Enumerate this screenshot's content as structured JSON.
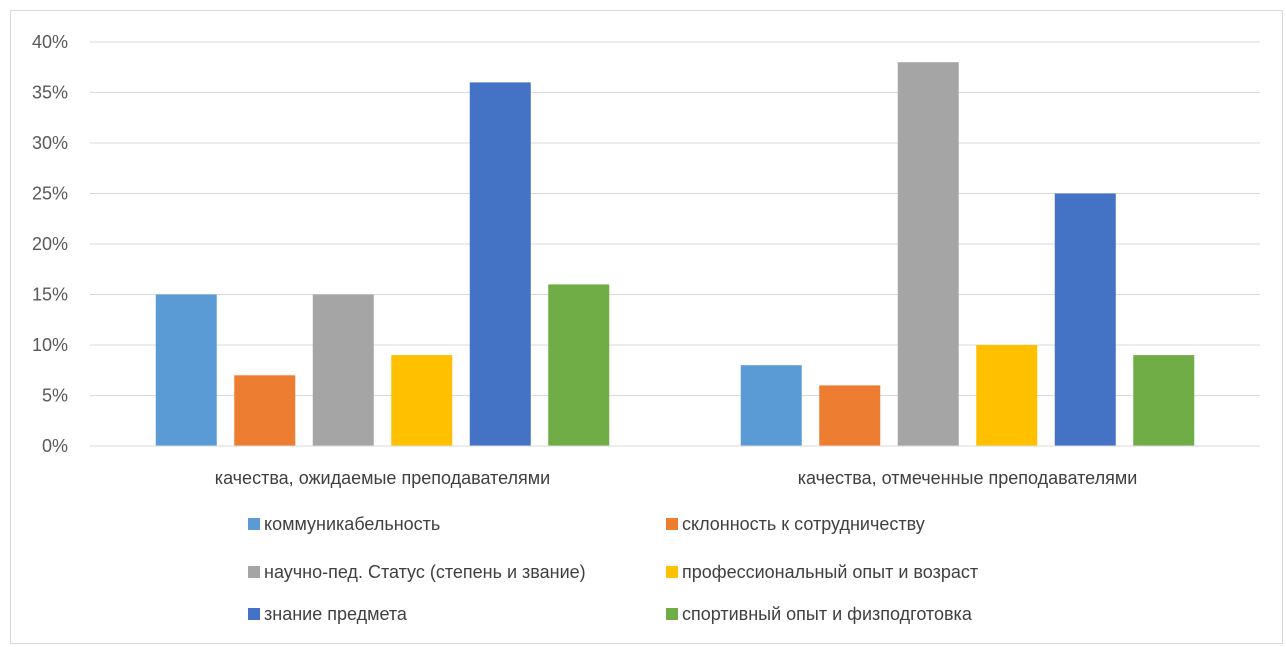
{
  "chart_data": {
    "type": "bar",
    "categories": [
      "качества, ожидаемые преподавателями",
      "качества, отмеченные преподавателями"
    ],
    "series": [
      {
        "name": "коммуникабельность",
        "values": [
          15,
          8
        ],
        "color": "#5b9bd5"
      },
      {
        "name": "склонность к сотрудничеству",
        "values": [
          7,
          6
        ],
        "color": "#ed7d31"
      },
      {
        "name": "научно-пед. Статус (степень и звание)",
        "values": [
          15,
          38
        ],
        "color": "#a5a5a5"
      },
      {
        "name": "профессиональный опыт и возраст",
        "values": [
          9,
          10
        ],
        "color": "#ffc000"
      },
      {
        "name": "знание предмета",
        "values": [
          36,
          25
        ],
        "color": "#4472c4"
      },
      {
        "name": "спортивный опыт и физподготовка",
        "values": [
          16,
          9
        ],
        "color": "#70ad47"
      }
    ],
    "ylim": [
      0,
      40
    ],
    "yticks": [
      "0%",
      "5%",
      "10%",
      "15%",
      "20%",
      "25%",
      "30%",
      "35%",
      "40%"
    ],
    "grid": true,
    "legend_position": "bottom",
    "title": "",
    "xlabel": "",
    "ylabel": ""
  }
}
